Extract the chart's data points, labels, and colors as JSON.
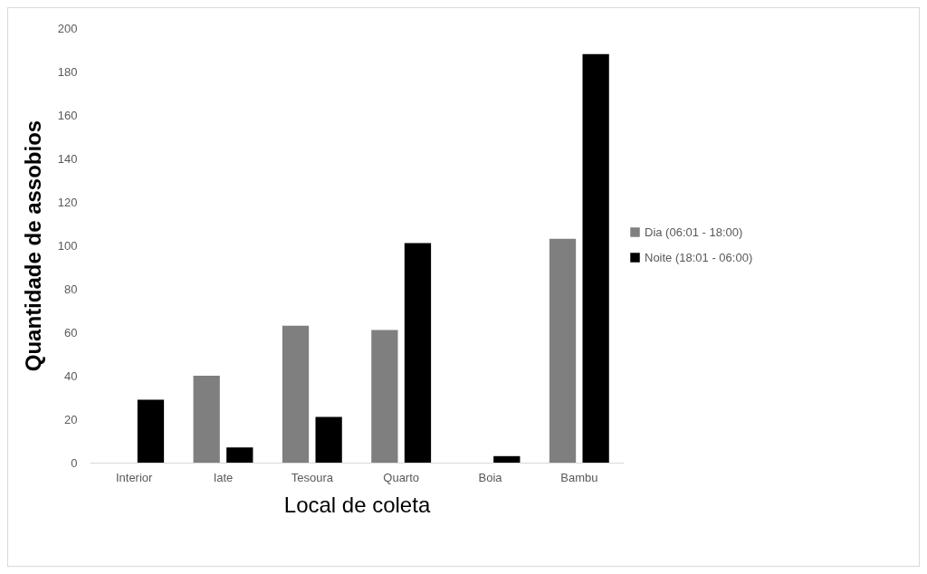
{
  "chart_data": {
    "type": "bar",
    "xlabel": "Local de coleta",
    "ylabel": "Quantidade de assobios",
    "categories": [
      "Interior",
      "Iate",
      "Tesoura",
      "Quarto",
      "Boia",
      "Bambu"
    ],
    "series": [
      {
        "name": "Dia (06:01 - 18:00)",
        "color": "#7f7f7f",
        "values": [
          0,
          40,
          63,
          61,
          0,
          103
        ]
      },
      {
        "name": "Noite (18:01 - 06:00)",
        "color": "#000000",
        "values": [
          29,
          7,
          21,
          101,
          3,
          188
        ]
      }
    ],
    "ylim": [
      0,
      200
    ],
    "yticks": [
      0,
      20,
      40,
      60,
      80,
      100,
      120,
      140,
      160,
      180,
      200
    ],
    "grid": false,
    "legend": "right"
  }
}
